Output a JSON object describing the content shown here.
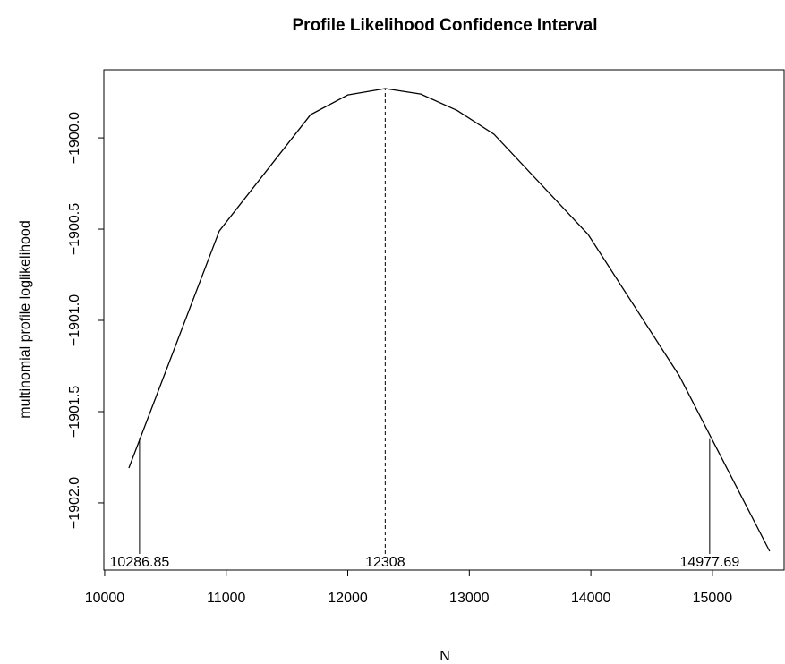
{
  "chart_data": {
    "type": "line",
    "title": "Profile Likelihood Confidence Interval",
    "xlabel": "N",
    "ylabel": "multinomial profile loglikelihood",
    "x": [
      10199,
      10943,
      11694,
      12000,
      12308,
      12600,
      12900,
      13203,
      13977,
      14728,
      15471
    ],
    "values": [
      -1901.809,
      -1900.51,
      -1899.873,
      -1899.765,
      -1899.73,
      -1899.76,
      -1899.85,
      -1899.98,
      -1900.529,
      -1901.304,
      -1902.265
    ],
    "color": "#000000",
    "xlim": [
      9993,
      15590
    ],
    "ylim": [
      -1902.368,
      -1899.627
    ],
    "xticks": [
      10000,
      11000,
      12000,
      13000,
      14000,
      15000
    ],
    "yticks": [
      {
        "value": -1900,
        "label": "−1900.0"
      },
      {
        "value": -1900.5,
        "label": "−1900.5"
      },
      {
        "value": -1901,
        "label": "−1901.0"
      },
      {
        "value": -1901.5,
        "label": "−1901.5"
      },
      {
        "value": -1902,
        "label": "−1902.0"
      }
    ],
    "markers": [
      {
        "x": 10286.85,
        "y": -1901.65,
        "label": "10286.85",
        "dashed": false
      },
      {
        "x": 12308,
        "y": -1899.73,
        "label": "12308",
        "dashed": true
      },
      {
        "x": 14977.69,
        "y": -1901.65,
        "label": "14977.69",
        "dashed": false
      }
    ]
  }
}
